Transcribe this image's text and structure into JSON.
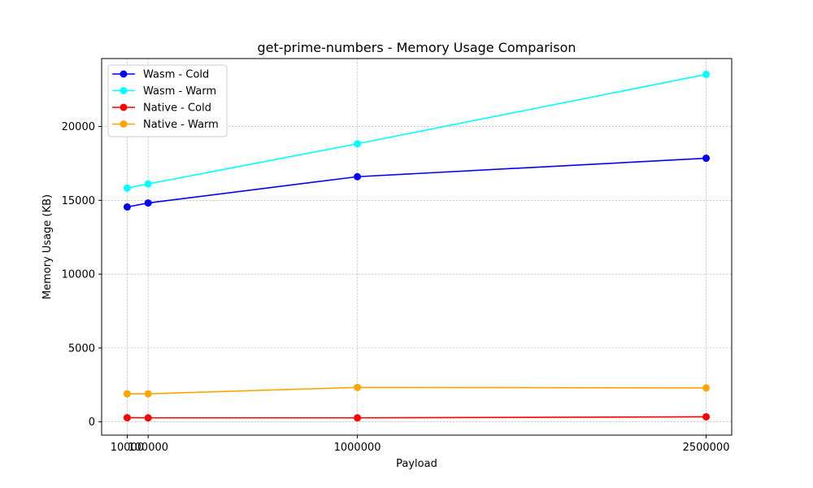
{
  "chart_data": {
    "type": "line",
    "title": "get-prime-numbers - Memory Usage Comparison",
    "xlabel": "Payload",
    "ylabel": "Memory Usage (KB)",
    "x": [
      10000,
      100000,
      1000000,
      2500000
    ],
    "x_tick_labels": [
      "10000",
      "100000",
      "1000000",
      "2500000"
    ],
    "xlim": [
      -100000,
      2610000
    ],
    "ylim": [
      -900,
      24600
    ],
    "y_ticks": [
      0,
      5000,
      10000,
      15000,
      20000
    ],
    "grid": true,
    "legend_position": "top-left",
    "series": [
      {
        "name": "Wasm - Cold",
        "color": "#0000ff",
        "values": [
          14550,
          14820,
          16600,
          17850
        ]
      },
      {
        "name": "Wasm - Warm",
        "color": "#00ffff",
        "values": [
          15830,
          16110,
          18830,
          23530
        ]
      },
      {
        "name": "Native - Cold",
        "color": "#ff0000",
        "values": [
          280,
          270,
          270,
          340
        ]
      },
      {
        "name": "Native - Warm",
        "color": "#ffa500",
        "values": [
          1900,
          1900,
          2330,
          2300
        ]
      }
    ]
  }
}
